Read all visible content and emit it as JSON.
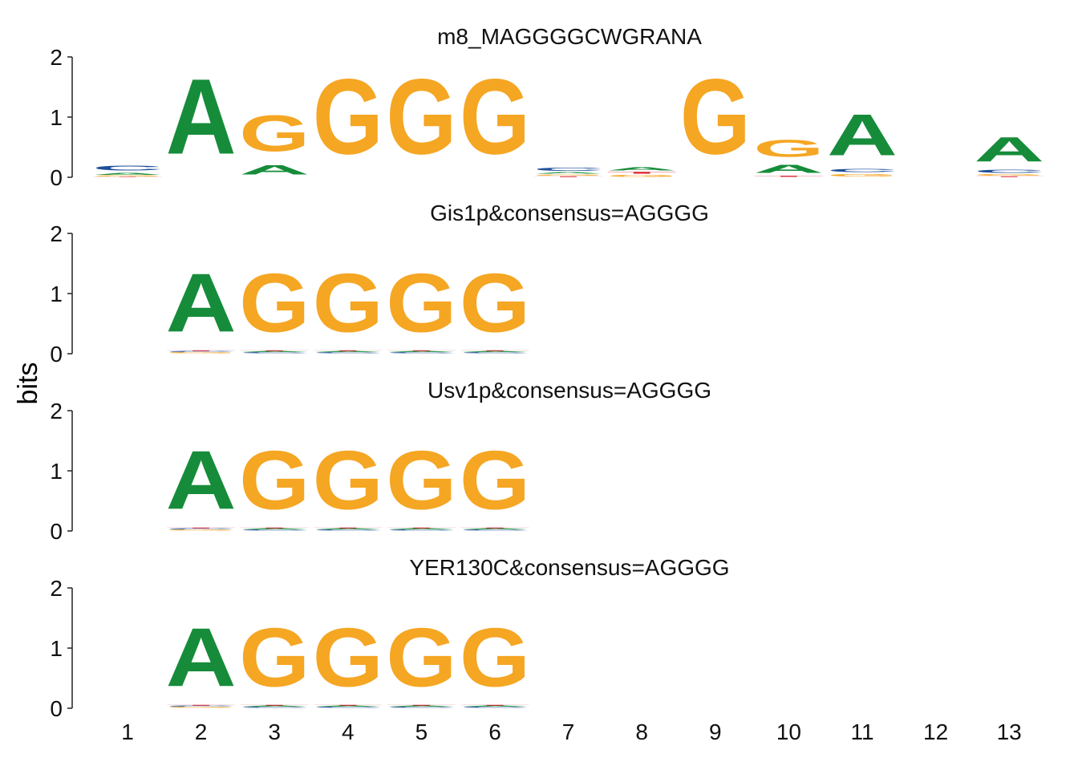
{
  "chart_data": {
    "type": "sequence-logo",
    "ylabel": "bits",
    "ylim": [
      0,
      2
    ],
    "yticks": [
      0,
      1,
      2
    ],
    "x_positions": [
      1,
      2,
      3,
      4,
      5,
      6,
      7,
      8,
      9,
      10,
      11,
      12,
      13
    ],
    "colors": {
      "A": "#168c3a",
      "C": "#1f4f9a",
      "G": "#f5a623",
      "T": "#d8202e"
    },
    "panels": [
      {
        "title": "m8_MAGGGGCWGRANA",
        "positions": [
          {
            "pos": 1,
            "letters": [
              [
                "T",
                0.01
              ],
              [
                "G",
                0.02
              ],
              [
                "A",
                0.06
              ],
              [
                "C",
                0.12
              ]
            ]
          },
          {
            "pos": 2,
            "letters": [
              [
                "A",
                2.0
              ]
            ]
          },
          {
            "pos": 3,
            "letters": [
              [
                "A",
                0.25
              ],
              [
                "G",
                0.95
              ]
            ]
          },
          {
            "pos": 4,
            "letters": [
              [
                "G",
                2.0
              ]
            ]
          },
          {
            "pos": 5,
            "letters": [
              [
                "G",
                2.0
              ]
            ]
          },
          {
            "pos": 6,
            "letters": [
              [
                "G",
                2.0
              ]
            ]
          },
          {
            "pos": 7,
            "letters": [
              [
                "T",
                0.02
              ],
              [
                "G",
                0.03
              ],
              [
                "A",
                0.04
              ],
              [
                "C",
                0.08
              ]
            ]
          },
          {
            "pos": 8,
            "letters": [
              [
                "G",
                0.05
              ],
              [
                "T",
                0.05
              ],
              [
                "A",
                0.08
              ]
            ]
          },
          {
            "pos": 9,
            "letters": [
              [
                "G",
                2.0
              ]
            ]
          },
          {
            "pos": 10,
            "letters": [
              [
                "T",
                0.03
              ],
              [
                "A",
                0.22
              ],
              [
                "G",
                0.45
              ]
            ]
          },
          {
            "pos": 11,
            "letters": [
              [
                "G",
                0.07
              ],
              [
                "C",
                0.08
              ],
              [
                "A",
                1.1
              ]
            ]
          },
          {
            "pos": 12,
            "letters": []
          },
          {
            "pos": 13,
            "letters": [
              [
                "T",
                0.02
              ],
              [
                "G",
                0.04
              ],
              [
                "C",
                0.08
              ],
              [
                "A",
                0.65
              ]
            ]
          }
        ]
      },
      {
        "title": "Gis1p&consensus=AGGGG",
        "positions": [
          {
            "pos": 2,
            "letters": [
              [
                "G",
                0.02
              ],
              [
                "C",
                0.02
              ],
              [
                "T",
                0.02
              ],
              [
                "A",
                1.55
              ]
            ]
          },
          {
            "pos": 3,
            "letters": [
              [
                "C",
                0.02
              ],
              [
                "A",
                0.02
              ],
              [
                "T",
                0.02
              ],
              [
                "G",
                1.55
              ]
            ]
          },
          {
            "pos": 4,
            "letters": [
              [
                "C",
                0.02
              ],
              [
                "A",
                0.02
              ],
              [
                "T",
                0.02
              ],
              [
                "G",
                1.55
              ]
            ]
          },
          {
            "pos": 5,
            "letters": [
              [
                "C",
                0.02
              ],
              [
                "A",
                0.02
              ],
              [
                "T",
                0.02
              ],
              [
                "G",
                1.55
              ]
            ]
          },
          {
            "pos": 6,
            "letters": [
              [
                "C",
                0.02
              ],
              [
                "A",
                0.02
              ],
              [
                "T",
                0.02
              ],
              [
                "G",
                1.55
              ]
            ]
          }
        ]
      },
      {
        "title": "Usv1p&consensus=AGGGG",
        "positions": [
          {
            "pos": 2,
            "letters": [
              [
                "G",
                0.02
              ],
              [
                "C",
                0.02
              ],
              [
                "T",
                0.02
              ],
              [
                "A",
                1.55
              ]
            ]
          },
          {
            "pos": 3,
            "letters": [
              [
                "C",
                0.02
              ],
              [
                "A",
                0.02
              ],
              [
                "T",
                0.02
              ],
              [
                "G",
                1.55
              ]
            ]
          },
          {
            "pos": 4,
            "letters": [
              [
                "C",
                0.02
              ],
              [
                "A",
                0.02
              ],
              [
                "T",
                0.02
              ],
              [
                "G",
                1.55
              ]
            ]
          },
          {
            "pos": 5,
            "letters": [
              [
                "C",
                0.02
              ],
              [
                "A",
                0.02
              ],
              [
                "T",
                0.02
              ],
              [
                "G",
                1.55
              ]
            ]
          },
          {
            "pos": 6,
            "letters": [
              [
                "C",
                0.02
              ],
              [
                "A",
                0.02
              ],
              [
                "T",
                0.02
              ],
              [
                "G",
                1.55
              ]
            ]
          }
        ]
      },
      {
        "title": "YER130C&consensus=AGGGG",
        "positions": [
          {
            "pos": 2,
            "letters": [
              [
                "G",
                0.02
              ],
              [
                "C",
                0.02
              ],
              [
                "T",
                0.02
              ],
              [
                "A",
                1.55
              ]
            ]
          },
          {
            "pos": 3,
            "letters": [
              [
                "C",
                0.02
              ],
              [
                "A",
                0.02
              ],
              [
                "T",
                0.02
              ],
              [
                "G",
                1.55
              ]
            ]
          },
          {
            "pos": 4,
            "letters": [
              [
                "C",
                0.02
              ],
              [
                "A",
                0.02
              ],
              [
                "T",
                0.02
              ],
              [
                "G",
                1.55
              ]
            ]
          },
          {
            "pos": 5,
            "letters": [
              [
                "C",
                0.02
              ],
              [
                "A",
                0.02
              ],
              [
                "T",
                0.02
              ],
              [
                "G",
                1.55
              ]
            ]
          },
          {
            "pos": 6,
            "letters": [
              [
                "C",
                0.02
              ],
              [
                "A",
                0.02
              ],
              [
                "T",
                0.02
              ],
              [
                "G",
                1.55
              ]
            ]
          }
        ]
      }
    ]
  }
}
